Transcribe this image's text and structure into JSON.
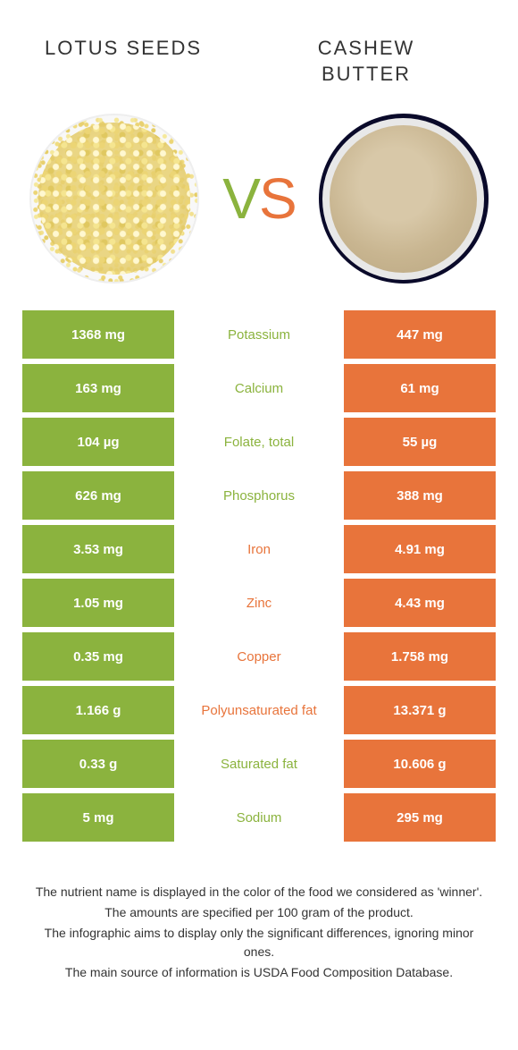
{
  "titles": {
    "left": "LOTUS SEEDS",
    "right": "CASHEW\nBUTTER"
  },
  "vs": {
    "v": "V",
    "s": "S"
  },
  "colors": {
    "green": "#8bb33e",
    "orange": "#e8743b",
    "text": "#333333",
    "white": "#ffffff"
  },
  "rows": [
    {
      "left": "1368 mg",
      "label": "Potassium",
      "right": "447 mg",
      "winner": "green"
    },
    {
      "left": "163 mg",
      "label": "Calcium",
      "right": "61 mg",
      "winner": "green"
    },
    {
      "left": "104 µg",
      "label": "Folate, total",
      "right": "55 µg",
      "winner": "green"
    },
    {
      "left": "626 mg",
      "label": "Phosphorus",
      "right": "388 mg",
      "winner": "green"
    },
    {
      "left": "3.53 mg",
      "label": "Iron",
      "right": "4.91 mg",
      "winner": "orange"
    },
    {
      "left": "1.05 mg",
      "label": "Zinc",
      "right": "4.43 mg",
      "winner": "orange"
    },
    {
      "left": "0.35 mg",
      "label": "Copper",
      "right": "1.758 mg",
      "winner": "orange"
    },
    {
      "left": "1.166 g",
      "label": "Polyunsaturated fat",
      "right": "13.371 g",
      "winner": "orange"
    },
    {
      "left": "0.33 g",
      "label": "Saturated fat",
      "right": "10.606 g",
      "winner": "green"
    },
    {
      "left": "5 mg",
      "label": "Sodium",
      "right": "295 mg",
      "winner": "green"
    }
  ],
  "footer": [
    "The nutrient name is displayed in the color of the food we considered as 'winner'.",
    "The amounts are specified per 100 gram of the product.",
    "The infographic aims to display only the significant differences, ignoring minor ones.",
    "The main source of information is USDA Food Composition Database."
  ]
}
